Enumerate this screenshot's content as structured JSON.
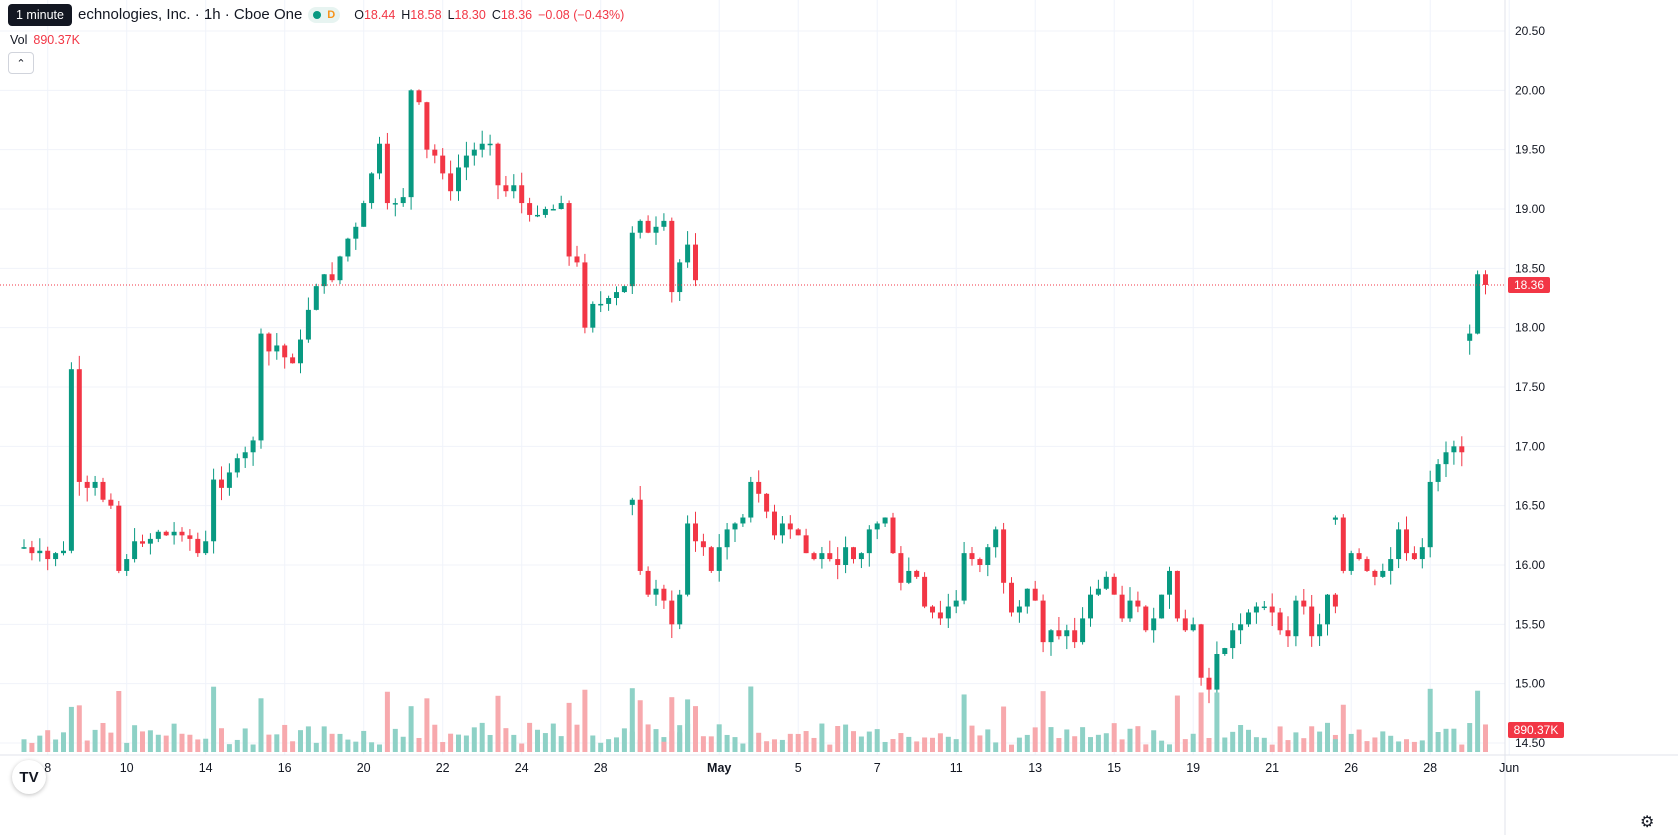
{
  "header": {
    "tooltip": "1 minute",
    "symbol": "echnologies, Inc. · 1h · Cboe One",
    "market_status_label": "D",
    "ohlc": [
      {
        "k": "O",
        "v": "18.44"
      },
      {
        "k": "H",
        "v": "18.58"
      },
      {
        "k": "L",
        "v": "18.30"
      },
      {
        "k": "C",
        "v": "18.36"
      },
      {
        "k": "",
        "v": "−0.08 (−0.43%)"
      }
    ]
  },
  "volume_legend": {
    "label": "Vol",
    "value": "890.37K"
  },
  "collapse_icon": "chevron-up-icon",
  "logo_text": "TV",
  "colors": {
    "up": "#089981",
    "down": "#f23645",
    "up_vol": "#8ed1c6",
    "down_vol": "#f7a9ad",
    "grid": "#f0f3fa"
  },
  "chart_data": {
    "type": "candlestick",
    "price_axis": {
      "min": 14.5,
      "max": 20.5,
      "ticks": [
        "20.50",
        "20.00",
        "19.50",
        "19.00",
        "18.50",
        "18.00",
        "17.50",
        "17.00",
        "16.50",
        "16.00",
        "15.50",
        "15.00",
        "14.50"
      ]
    },
    "time_axis_labels": [
      {
        "label": "8",
        "bar": 3
      },
      {
        "label": "10",
        "bar": 13
      },
      {
        "label": "14",
        "bar": 23
      },
      {
        "label": "16",
        "bar": 33
      },
      {
        "label": "20",
        "bar": 43
      },
      {
        "label": "22",
        "bar": 53
      },
      {
        "label": "24",
        "bar": 63
      },
      {
        "label": "28",
        "bar": 73
      },
      {
        "label": "May",
        "bar": 88
      },
      {
        "label": "5",
        "bar": 98
      },
      {
        "label": "7",
        "bar": 108
      },
      {
        "label": "11",
        "bar": 118
      },
      {
        "label": "13",
        "bar": 128
      },
      {
        "label": "15",
        "bar": 138
      },
      {
        "label": "19",
        "bar": 148
      },
      {
        "label": "21",
        "bar": 158
      },
      {
        "label": "26",
        "bar": 168
      },
      {
        "label": "28",
        "bar": 178
      },
      {
        "label": "Jun",
        "bar": 188
      }
    ],
    "last_price": "18.36",
    "last_volume": "890.37K",
    "segments": [
      {
        "start_bar": 0,
        "closes": [
          16.15,
          16.1,
          16.12,
          16.05,
          16.1,
          16.12,
          17.65,
          16.7,
          16.65,
          16.7,
          16.55,
          16.5,
          15.95,
          16.05,
          16.2,
          16.18,
          16.22,
          16.28,
          16.25,
          16.28,
          16.25,
          16.22,
          16.1,
          16.2,
          16.72,
          16.65,
          16.78,
          16.9,
          16.95,
          17.05,
          17.95,
          17.8,
          17.85,
          17.75,
          17.7,
          17.9,
          18.15,
          18.35,
          18.45,
          18.4,
          18.6,
          18.75,
          18.85,
          19.05,
          19.3,
          19.55,
          19.05,
          19.05,
          19.1,
          20.0,
          19.9,
          19.5,
          19.45,
          19.3,
          19.15,
          19.35,
          19.45,
          19.5,
          19.55,
          19.55,
          19.2,
          19.15,
          19.2,
          19.05,
          18.95,
          18.95,
          19.0,
          19.0,
          19.05,
          18.6,
          18.55,
          18.0,
          18.2,
          18.2,
          18.25,
          18.3,
          18.35,
          18.8,
          18.9,
          18.8,
          18.85,
          18.9,
          18.3,
          18.55,
          18.7,
          18.4
        ]
      },
      {
        "start_bar": 77,
        "closes": [
          16.55,
          15.95,
          15.75,
          15.8,
          15.7,
          15.5,
          15.75,
          16.35,
          16.2,
          16.15,
          15.95,
          16.15,
          16.3,
          16.35,
          16.4,
          16.7,
          16.6,
          16.45,
          16.25,
          16.35,
          16.3,
          16.25,
          16.1,
          16.05,
          16.1,
          16.05,
          16.0,
          16.15,
          16.05,
          16.1,
          16.3,
          16.35,
          16.4,
          16.1,
          15.85,
          15.95,
          15.9,
          15.65,
          15.6,
          15.55,
          15.65,
          15.7,
          16.1,
          16.05,
          16.0,
          16.15,
          16.3,
          15.85,
          15.6,
          15.65,
          15.8,
          15.7,
          15.35,
          15.45,
          15.4,
          15.45,
          15.35,
          15.55,
          15.75,
          15.8,
          15.9,
          15.75,
          15.55,
          15.7,
          15.65,
          15.45,
          15.55,
          15.75,
          15.95,
          15.55,
          15.45,
          15.5,
          15.05,
          14.95,
          15.25,
          15.3,
          15.45,
          15.5,
          15.6,
          15.65,
          15.65,
          15.6,
          15.45,
          15.4,
          15.7,
          15.65,
          15.4,
          15.5,
          15.75,
          15.65
        ]
      },
      {
        "start_bar": 166,
        "closes": [
          16.4,
          15.95,
          16.1,
          16.05,
          15.95,
          15.9,
          15.95,
          16.05,
          16.3,
          16.1,
          16.05,
          16.15,
          16.7,
          16.85,
          16.95,
          17.0,
          16.95
        ]
      },
      {
        "start_bar": 183,
        "closes": [
          17.95,
          18.45,
          18.36
        ]
      }
    ],
    "volume_max": 1.5
  }
}
